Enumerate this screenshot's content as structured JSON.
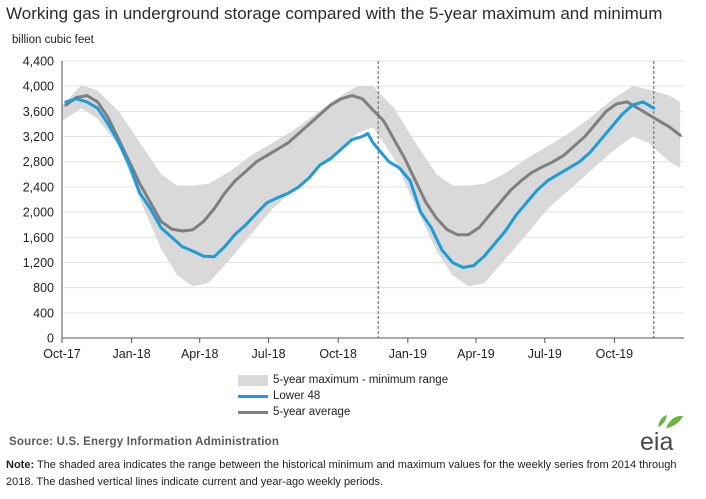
{
  "header": {
    "title": "Working gas in underground  storage compared with the 5-year maximum and minimum",
    "unit": "billion cubic feet"
  },
  "footer": {
    "source": "Source:  U.S. Energy Information Administration",
    "logo_text": "eia",
    "note_label": "Note:",
    "note_text": " The shaded area indicates the range between the historical minimum and maximum values for the weekly series from 2014 through 2018. The dashed vertical lines indicate current and year-ago weekly periods."
  },
  "colors": {
    "band": "#d9d9d9",
    "lower48": "#1f9bd7",
    "average": "#7f7f7f",
    "logo_leaf": "#6cb33f"
  },
  "chart_data": {
    "type": "line",
    "xlabel": "",
    "ylabel": "billion cubic feet",
    "ylim": [
      0,
      4400
    ],
    "yticks": [
      0,
      400,
      800,
      1200,
      1600,
      2000,
      2400,
      2800,
      3200,
      3600,
      4000,
      4400
    ],
    "ytick_labels": [
      "0",
      "400",
      "800",
      "1,200",
      "1,600",
      "2,000",
      "2,400",
      "2,800",
      "3,200",
      "3,600",
      "4,000",
      "4,400"
    ],
    "xlim": [
      "2017-10-01",
      "2020-01-01"
    ],
    "xticks": [
      "2017-10-01",
      "2018-01-01",
      "2018-04-01",
      "2018-07-01",
      "2018-10-01",
      "2019-01-01",
      "2019-04-01",
      "2019-07-01",
      "2019-10-01"
    ],
    "xtick_labels": [
      "Oct-17",
      "Jan-18",
      "Apr-18",
      "Jul-18",
      "Oct-18",
      "Jan-19",
      "Apr-19",
      "Jul-19",
      "Oct-19"
    ],
    "grid": true,
    "legend_position": "bottom-center",
    "vertical_markers": [
      "2018-11-23",
      "2019-11-22"
    ],
    "band": {
      "name": "5-year maximum - minimum range",
      "x": [
        "2017-10-01",
        "2017-10-27",
        "2017-11-17",
        "2017-12-15",
        "2018-01-12",
        "2018-02-09",
        "2018-03-02",
        "2018-03-23",
        "2018-04-13",
        "2018-05-11",
        "2018-06-08",
        "2018-07-06",
        "2018-08-03",
        "2018-08-31",
        "2018-09-28",
        "2018-10-26",
        "2018-11-16",
        "2018-12-14",
        "2019-01-11",
        "2019-02-08",
        "2019-03-01",
        "2019-03-22",
        "2019-04-12",
        "2019-05-10",
        "2019-06-07",
        "2019-07-05",
        "2019-08-02",
        "2019-08-30",
        "2019-09-27",
        "2019-10-25",
        "2019-11-15",
        "2019-12-13",
        "2019-12-27"
      ],
      "max": [
        3700,
        4020,
        3930,
        3600,
        3100,
        2600,
        2420,
        2420,
        2450,
        2650,
        2900,
        3100,
        3300,
        3550,
        3800,
        4000,
        4000,
        3650,
        3100,
        2600,
        2420,
        2420,
        2450,
        2620,
        2850,
        3050,
        3250,
        3500,
        3780,
        4000,
        3950,
        3850,
        3750
      ],
      "min": [
        3450,
        3650,
        3480,
        3050,
        2200,
        1420,
        1000,
        820,
        880,
        1250,
        1650,
        2050,
        2350,
        2650,
        2950,
        3250,
        3350,
        2850,
        2100,
        1380,
        1000,
        820,
        870,
        1250,
        1650,
        2050,
        2350,
        2650,
        2950,
        3200,
        3100,
        2800,
        2700
      ]
    },
    "series": [
      {
        "name": "Lower 48",
        "x": [
          "2017-10-06",
          "2017-10-20",
          "2017-11-03",
          "2017-11-17",
          "2017-12-01",
          "2017-12-15",
          "2017-12-29",
          "2018-01-12",
          "2018-01-26",
          "2018-02-09",
          "2018-02-23",
          "2018-03-09",
          "2018-03-23",
          "2018-04-06",
          "2018-04-20",
          "2018-05-04",
          "2018-05-18",
          "2018-06-01",
          "2018-06-15",
          "2018-06-29",
          "2018-07-13",
          "2018-07-27",
          "2018-08-10",
          "2018-08-24",
          "2018-09-07",
          "2018-09-21",
          "2018-10-05",
          "2018-10-19",
          "2018-11-02",
          "2018-11-09",
          "2018-11-16",
          "2018-11-23",
          "2018-12-07",
          "2018-12-21",
          "2019-01-04",
          "2019-01-18",
          "2019-02-01",
          "2019-02-15",
          "2019-03-01",
          "2019-03-15",
          "2019-03-29",
          "2019-04-12",
          "2019-04-26",
          "2019-05-10",
          "2019-05-24",
          "2019-06-07",
          "2019-06-21",
          "2019-07-05",
          "2019-07-19",
          "2019-08-02",
          "2019-08-16",
          "2019-08-30",
          "2019-09-13",
          "2019-09-27",
          "2019-10-11",
          "2019-10-25",
          "2019-11-08",
          "2019-11-22"
        ],
        "values": [
          3750,
          3800,
          3750,
          3650,
          3400,
          3100,
          2750,
          2300,
          2050,
          1750,
          1600,
          1450,
          1380,
          1300,
          1290,
          1450,
          1650,
          1800,
          1980,
          2150,
          2230,
          2300,
          2400,
          2550,
          2750,
          2850,
          3000,
          3150,
          3200,
          3250,
          3100,
          3000,
          2800,
          2700,
          2500,
          2000,
          1750,
          1400,
          1200,
          1120,
          1150,
          1300,
          1500,
          1700,
          1950,
          2150,
          2350,
          2500,
          2600,
          2700,
          2800,
          2950,
          3150,
          3350,
          3550,
          3700,
          3750,
          3650
        ]
      },
      {
        "name": "5-year average",
        "x": [
          "2017-10-06",
          "2017-10-20",
          "2017-11-03",
          "2017-11-17",
          "2017-12-01",
          "2017-12-15",
          "2017-12-29",
          "2018-01-12",
          "2018-01-26",
          "2018-02-09",
          "2018-02-23",
          "2018-03-09",
          "2018-03-23",
          "2018-04-06",
          "2018-04-20",
          "2018-05-04",
          "2018-05-18",
          "2018-06-01",
          "2018-06-15",
          "2018-06-29",
          "2018-07-13",
          "2018-07-27",
          "2018-08-10",
          "2018-08-24",
          "2018-09-07",
          "2018-09-21",
          "2018-10-05",
          "2018-10-19",
          "2018-11-02",
          "2018-11-16",
          "2018-11-30",
          "2018-12-14",
          "2018-12-28",
          "2019-01-11",
          "2019-01-25",
          "2019-02-08",
          "2019-02-22",
          "2019-03-08",
          "2019-03-22",
          "2019-04-05",
          "2019-04-19",
          "2019-05-03",
          "2019-05-17",
          "2019-05-31",
          "2019-06-14",
          "2019-06-28",
          "2019-07-12",
          "2019-07-26",
          "2019-08-09",
          "2019-08-23",
          "2019-09-06",
          "2019-09-20",
          "2019-10-04",
          "2019-10-18",
          "2019-11-01",
          "2019-11-15",
          "2019-11-29",
          "2019-12-13",
          "2019-12-27"
        ],
        "values": [
          3700,
          3820,
          3850,
          3750,
          3500,
          3150,
          2800,
          2450,
          2150,
          1850,
          1730,
          1700,
          1720,
          1850,
          2050,
          2300,
          2500,
          2650,
          2800,
          2900,
          3000,
          3100,
          3250,
          3400,
          3550,
          3700,
          3800,
          3850,
          3800,
          3620,
          3450,
          3150,
          2850,
          2500,
          2150,
          1900,
          1720,
          1640,
          1640,
          1750,
          1950,
          2150,
          2350,
          2500,
          2630,
          2720,
          2800,
          2900,
          3050,
          3200,
          3400,
          3600,
          3720,
          3750,
          3650,
          3550,
          3450,
          3350,
          3220
        ]
      }
    ]
  }
}
